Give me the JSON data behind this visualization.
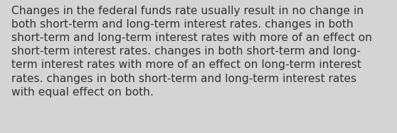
{
  "text": "Changes in the federal funds rate usually result in no change in both short-term and long-term interest rates. changes in both short-term and long-term interest rates with more of an effect on short-term interest rates. changes in both short-term and long-term interest rates with more of an effect on long-term interest rates. changes in both short-term and long-term interest rates with equal effect on both.",
  "wrapped_text": "Changes in the federal funds rate usually result in no change in\nboth short-term and long-term interest rates. changes in both\nshort-term and long-term interest rates with more of an effect on\nshort-term interest rates. changes in both short-term and long-\nterm interest rates with more of an effect on long-term interest\nrates. changes in both short-term and long-term interest rates\nwith equal effect on both.",
  "background_color": "#d4d4d4",
  "text_color": "#333333",
  "font_size": 11.2,
  "fig_width": 5.58,
  "fig_height": 1.88
}
